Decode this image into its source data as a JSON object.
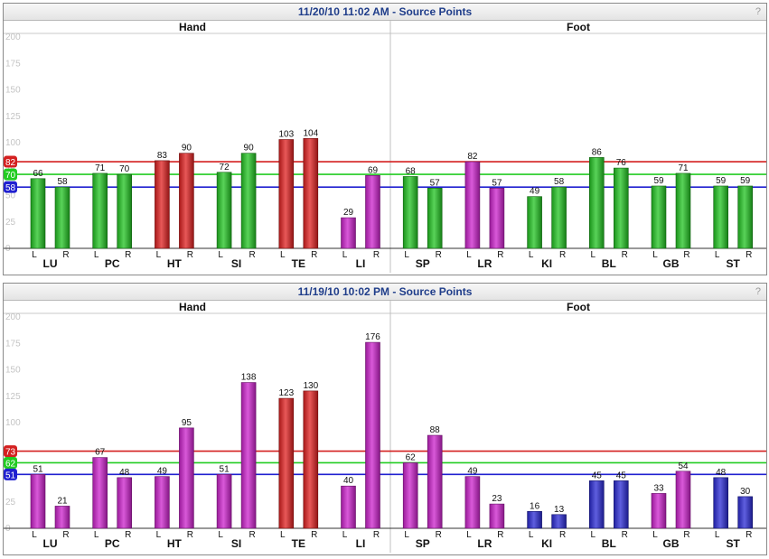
{
  "help_label": "?",
  "colors": {
    "red_bar": "#e02020",
    "green_bar": "#22c422",
    "magenta_bar": "#cc22cc",
    "blue_bar": "#2a2ad4",
    "red_line": "#d42020",
    "green_line": "#22cc22",
    "blue_line": "#2020d0",
    "title_text": "#1f3d8a"
  },
  "chart_data": [
    {
      "type": "bar",
      "title": "11/20/10 11:02 AM - Source Points",
      "ylim": [
        0,
        200
      ],
      "yticks": [
        0,
        25,
        50,
        75,
        100,
        125,
        150,
        175,
        200
      ],
      "sections": [
        "Hand",
        "Foot"
      ],
      "categories": [
        "LU",
        "PC",
        "HT",
        "SI",
        "TE",
        "LI",
        "SP",
        "LR",
        "KI",
        "BL",
        "GB",
        "ST"
      ],
      "side_labels": [
        "L",
        "R"
      ],
      "series": [
        {
          "values": [
            66,
            71,
            83,
            72,
            103,
            29,
            68,
            82,
            49,
            86,
            59,
            59
          ],
          "colors": [
            "green",
            "green",
            "red",
            "green",
            "red",
            "magenta",
            "green",
            "magenta",
            "green",
            "green",
            "green",
            "green"
          ]
        },
        {
          "values": [
            58,
            70,
            90,
            90,
            104,
            69,
            57,
            57,
            58,
            76,
            71,
            59
          ],
          "colors": [
            "green",
            "green",
            "red",
            "green",
            "red",
            "magenta",
            "green",
            "magenta",
            "green",
            "green",
            "green",
            "green"
          ]
        }
      ],
      "reference_lines": [
        {
          "value": 82,
          "color": "red",
          "label": "82"
        },
        {
          "value": 70,
          "color": "green",
          "label": "70"
        },
        {
          "value": 58,
          "color": "blue",
          "label": "58"
        }
      ],
      "grid": false
    },
    {
      "type": "bar",
      "title": "11/19/10 10:02 PM - Source Points",
      "ylim": [
        0,
        200
      ],
      "yticks": [
        0,
        25,
        50,
        75,
        100,
        125,
        150,
        175,
        200
      ],
      "sections": [
        "Hand",
        "Foot"
      ],
      "categories": [
        "LU",
        "PC",
        "HT",
        "SI",
        "TE",
        "LI",
        "SP",
        "LR",
        "KI",
        "BL",
        "GB",
        "ST"
      ],
      "side_labels": [
        "L",
        "R"
      ],
      "series": [
        {
          "values": [
            51,
            67,
            49,
            51,
            123,
            40,
            62,
            49,
            16,
            45,
            33,
            48
          ],
          "colors": [
            "magenta",
            "magenta",
            "magenta",
            "magenta",
            "red",
            "magenta",
            "magenta",
            "magenta",
            "blue",
            "blue",
            "magenta",
            "blue"
          ]
        },
        {
          "values": [
            21,
            48,
            95,
            138,
            130,
            176,
            88,
            23,
            13,
            45,
            54,
            30
          ],
          "colors": [
            "magenta",
            "magenta",
            "magenta",
            "magenta",
            "red",
            "magenta",
            "magenta",
            "magenta",
            "blue",
            "blue",
            "magenta",
            "blue"
          ]
        }
      ],
      "reference_lines": [
        {
          "value": 73,
          "color": "red",
          "label": "73"
        },
        {
          "value": 62,
          "color": "green",
          "label": "62"
        },
        {
          "value": 51,
          "color": "blue",
          "label": "51"
        }
      ],
      "grid": false
    }
  ]
}
